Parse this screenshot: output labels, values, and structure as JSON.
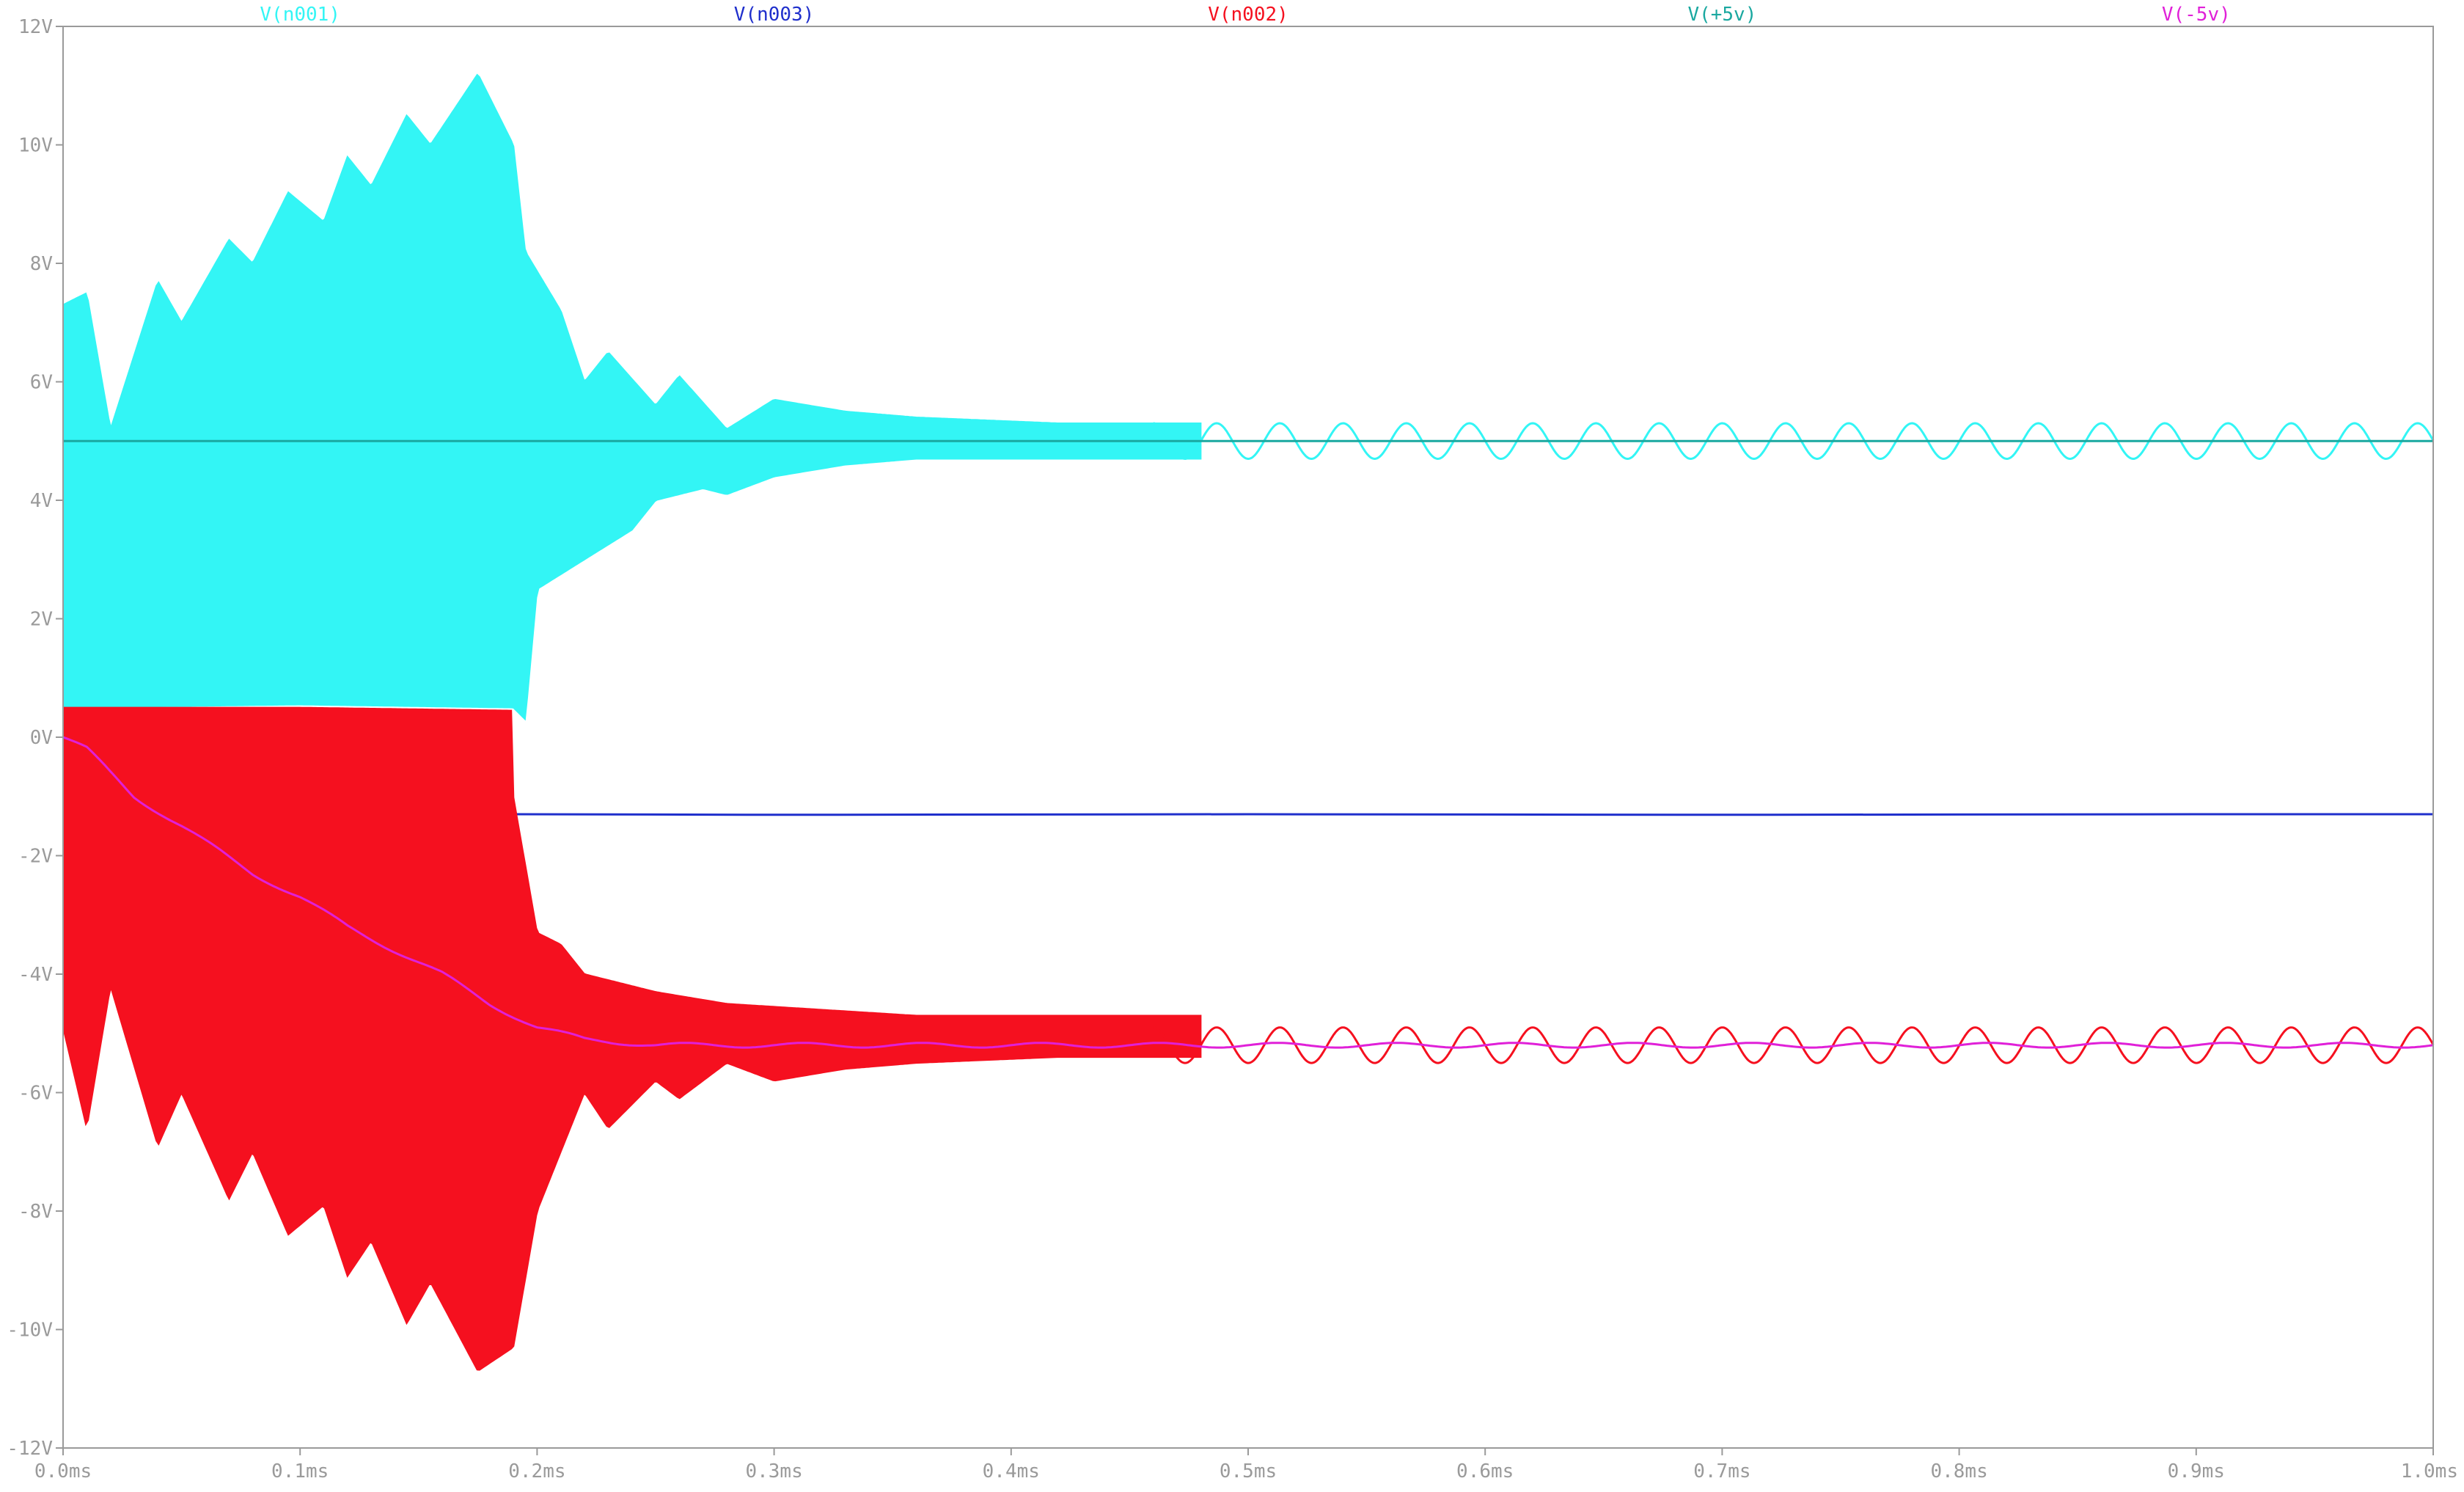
{
  "chart_data": {
    "type": "line",
    "title": "",
    "xlabel": "",
    "ylabel": "",
    "x_unit": "ms",
    "y_unit": "V",
    "xlim": [
      0,
      1.0
    ],
    "ylim": [
      -12,
      12
    ],
    "grid": false,
    "legend_placement": "top",
    "x_ticks": [
      "0.0ms",
      "0.1ms",
      "0.2ms",
      "0.3ms",
      "0.4ms",
      "0.5ms",
      "0.6ms",
      "0.7ms",
      "0.8ms",
      "0.9ms",
      "1.0ms"
    ],
    "y_ticks": [
      "12V",
      "10V",
      "8V",
      "6V",
      "4V",
      "2V",
      "0V",
      "-2V",
      "-4V",
      "-6V",
      "-8V",
      "-10V",
      "-12V"
    ],
    "axis_color": "#9a9a9a",
    "series": [
      {
        "name": "V(n001)",
        "color": "#33f5f5",
        "style": "startup-envelope + steady sine",
        "envelope_upper": [
          [
            0,
            7.3
          ],
          [
            0.01,
            7.5
          ],
          [
            0.02,
            5.2
          ],
          [
            0.04,
            7.7
          ],
          [
            0.05,
            7.0
          ],
          [
            0.07,
            8.4
          ],
          [
            0.08,
            8.0
          ],
          [
            0.095,
            9.2
          ],
          [
            0.11,
            8.7
          ],
          [
            0.12,
            9.8
          ],
          [
            0.13,
            9.3
          ],
          [
            0.145,
            10.5
          ],
          [
            0.155,
            10.0
          ],
          [
            0.175,
            11.2
          ],
          [
            0.19,
            10.0
          ],
          [
            0.195,
            8.2
          ],
          [
            0.21,
            7.2
          ],
          [
            0.22,
            6.0
          ],
          [
            0.23,
            6.5
          ],
          [
            0.25,
            5.6
          ],
          [
            0.26,
            6.1
          ],
          [
            0.28,
            5.2
          ],
          [
            0.3,
            5.7
          ],
          [
            0.33,
            5.5
          ],
          [
            0.36,
            5.4
          ],
          [
            0.39,
            5.35
          ],
          [
            0.42,
            5.3
          ],
          [
            0.44,
            5.3
          ],
          [
            0.48,
            5.3
          ]
        ],
        "envelope_lower": [
          [
            0,
            0.5
          ],
          [
            0.1,
            0.55
          ],
          [
            0.19,
            0.5
          ],
          [
            0.195,
            0.3
          ],
          [
            0.2,
            2.5
          ],
          [
            0.22,
            3.0
          ],
          [
            0.24,
            3.5
          ],
          [
            0.25,
            4.0
          ],
          [
            0.27,
            4.2
          ],
          [
            0.28,
            4.1
          ],
          [
            0.3,
            4.4
          ],
          [
            0.33,
            4.6
          ],
          [
            0.36,
            4.7
          ],
          [
            0.4,
            4.7
          ],
          [
            0.44,
            4.7
          ],
          [
            0.48,
            4.7
          ]
        ],
        "steady_center": 5.0,
        "steady_amplitude": 0.3,
        "steady_period_ms": 0.02667
      },
      {
        "name": "V(n003)",
        "color": "#1f2fcc",
        "points": [
          [
            0.19,
            -1.3
          ],
          [
            0.3,
            -1.31
          ],
          [
            0.5,
            -1.3
          ],
          [
            0.7,
            -1.31
          ],
          [
            0.9,
            -1.3
          ],
          [
            1.0,
            -1.3
          ]
        ]
      },
      {
        "name": "V(n002)",
        "color": "#f5101f",
        "style": "startup-envelope + steady sine",
        "envelope_upper": [
          [
            0,
            0.5
          ],
          [
            0.1,
            0.5
          ],
          [
            0.19,
            0.45
          ],
          [
            0.19,
            -1.0
          ],
          [
            0.2,
            -3.3
          ],
          [
            0.21,
            -3.5
          ],
          [
            0.22,
            -4.0
          ],
          [
            0.25,
            -4.3
          ],
          [
            0.28,
            -4.5
          ],
          [
            0.32,
            -4.6
          ],
          [
            0.36,
            -4.7
          ],
          [
            0.4,
            -4.7
          ],
          [
            0.44,
            -4.7
          ],
          [
            0.48,
            -4.7
          ]
        ],
        "envelope_lower": [
          [
            0,
            -4.9
          ],
          [
            0.01,
            -6.6
          ],
          [
            0.02,
            -4.2
          ],
          [
            0.04,
            -6.9
          ],
          [
            0.05,
            -6.0
          ],
          [
            0.07,
            -7.8
          ],
          [
            0.08,
            -7.0
          ],
          [
            0.095,
            -8.4
          ],
          [
            0.11,
            -7.9
          ],
          [
            0.12,
            -9.1
          ],
          [
            0.13,
            -8.5
          ],
          [
            0.145,
            -9.9
          ],
          [
            0.155,
            -9.2
          ],
          [
            0.175,
            -10.7
          ],
          [
            0.19,
            -10.3
          ],
          [
            0.2,
            -8.0
          ],
          [
            0.21,
            -7.0
          ],
          [
            0.22,
            -6.0
          ],
          [
            0.23,
            -6.6
          ],
          [
            0.25,
            -5.8
          ],
          [
            0.26,
            -6.1
          ],
          [
            0.28,
            -5.5
          ],
          [
            0.3,
            -5.8
          ],
          [
            0.33,
            -5.6
          ],
          [
            0.36,
            -5.5
          ],
          [
            0.39,
            -5.45
          ],
          [
            0.42,
            -5.4
          ],
          [
            0.44,
            -5.4
          ],
          [
            0.48,
            -5.4
          ]
        ],
        "steady_center": -5.2,
        "steady_amplitude": 0.3,
        "steady_period_ms": 0.02667
      },
      {
        "name": "V(+5v)",
        "color": "#1aa8a0",
        "points": [
          [
            0,
            5.0
          ],
          [
            1.0,
            5.0
          ]
        ]
      },
      {
        "name": "V(-5v)",
        "color": "#e020d8",
        "points": [
          [
            0,
            0
          ],
          [
            0.01,
            -0.2
          ],
          [
            0.02,
            -0.6
          ],
          [
            0.03,
            -1.0
          ],
          [
            0.05,
            -1.5
          ],
          [
            0.08,
            -2.3
          ],
          [
            0.1,
            -2.7
          ],
          [
            0.12,
            -3.2
          ],
          [
            0.14,
            -3.6
          ],
          [
            0.16,
            -4.0
          ],
          [
            0.18,
            -4.5
          ],
          [
            0.2,
            -4.9
          ],
          [
            0.22,
            -5.1
          ],
          [
            0.25,
            -5.2
          ],
          [
            0.3,
            -5.2
          ],
          [
            0.4,
            -5.2
          ],
          [
            0.5,
            -5.2
          ],
          [
            0.6,
            -5.2
          ],
          [
            0.7,
            -5.2
          ],
          [
            0.8,
            -5.2
          ],
          [
            0.9,
            -5.2
          ],
          [
            1.0,
            -5.2
          ]
        ],
        "ripple_amplitude": 0.04
      }
    ]
  }
}
